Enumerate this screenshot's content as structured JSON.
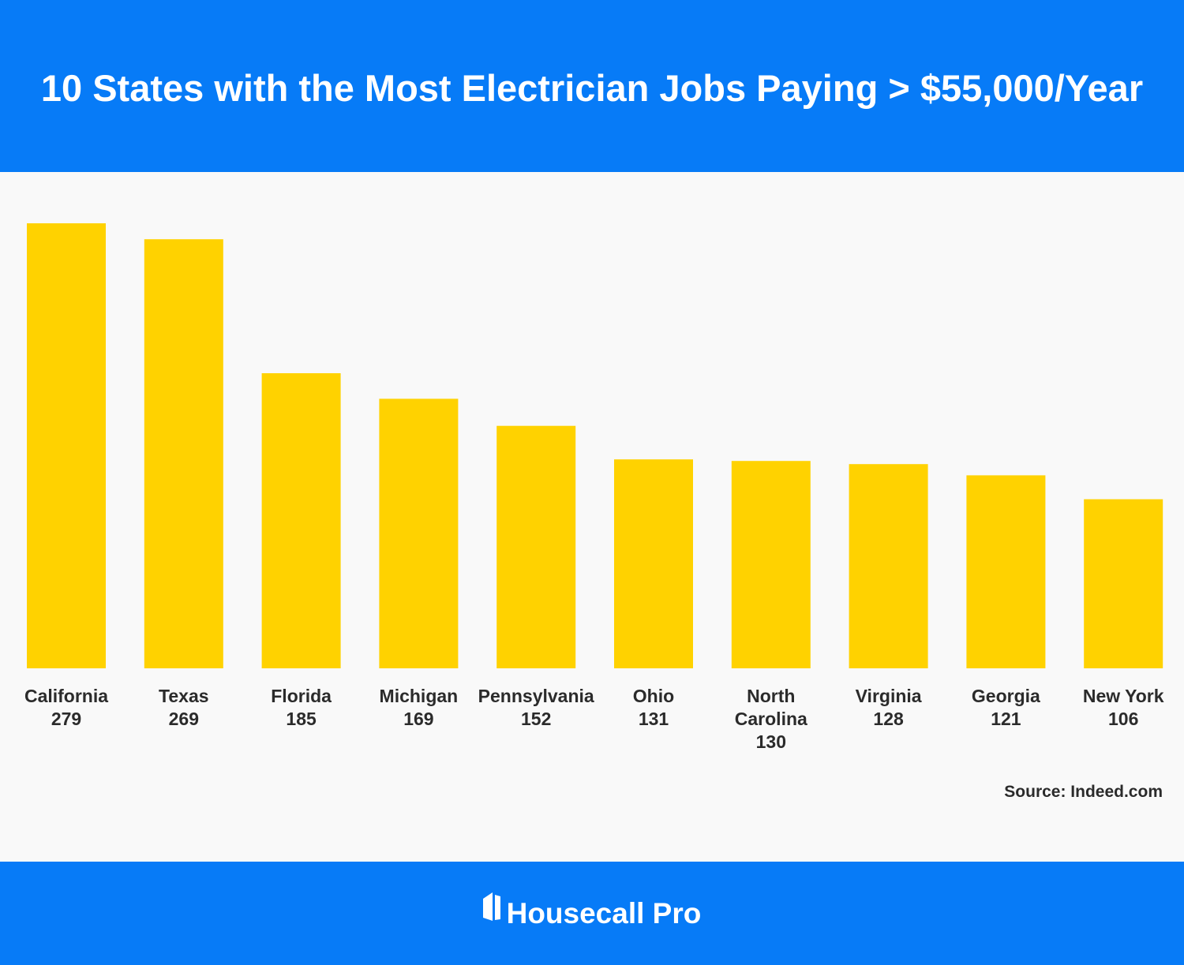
{
  "header": {
    "title": "10 States with the Most Electrician Jobs Paying > $55,000/Year"
  },
  "chart_data": {
    "type": "bar",
    "categories": [
      "California",
      "Texas",
      "Florida",
      "Michigan",
      "Pennsylvania",
      "Ohio",
      "North Carolina",
      "Virginia",
      "Georgia",
      "New York"
    ],
    "label_lines": [
      [
        "California"
      ],
      [
        "Texas"
      ],
      [
        "Florida"
      ],
      [
        "Michigan"
      ],
      [
        "Pennsylvania"
      ],
      [
        "Ohio"
      ],
      [
        "North",
        "Carolina"
      ],
      [
        "Virginia"
      ],
      [
        "Georgia"
      ],
      [
        "New York"
      ]
    ],
    "values": [
      279,
      269,
      185,
      169,
      152,
      131,
      130,
      128,
      121,
      106
    ],
    "ylim": [
      0,
      279
    ],
    "grid": false,
    "legend": "none",
    "bar_color": "#ffd200"
  },
  "source": "Source: Indeed.com",
  "footer": {
    "brand": "Housecall Pro",
    "brand_icon": "house-logo-icon"
  },
  "colors": {
    "brand_blue": "#077bf7",
    "background": "#f9f9f9",
    "text_dark": "#2b2b2b",
    "bar": "#ffd200"
  }
}
